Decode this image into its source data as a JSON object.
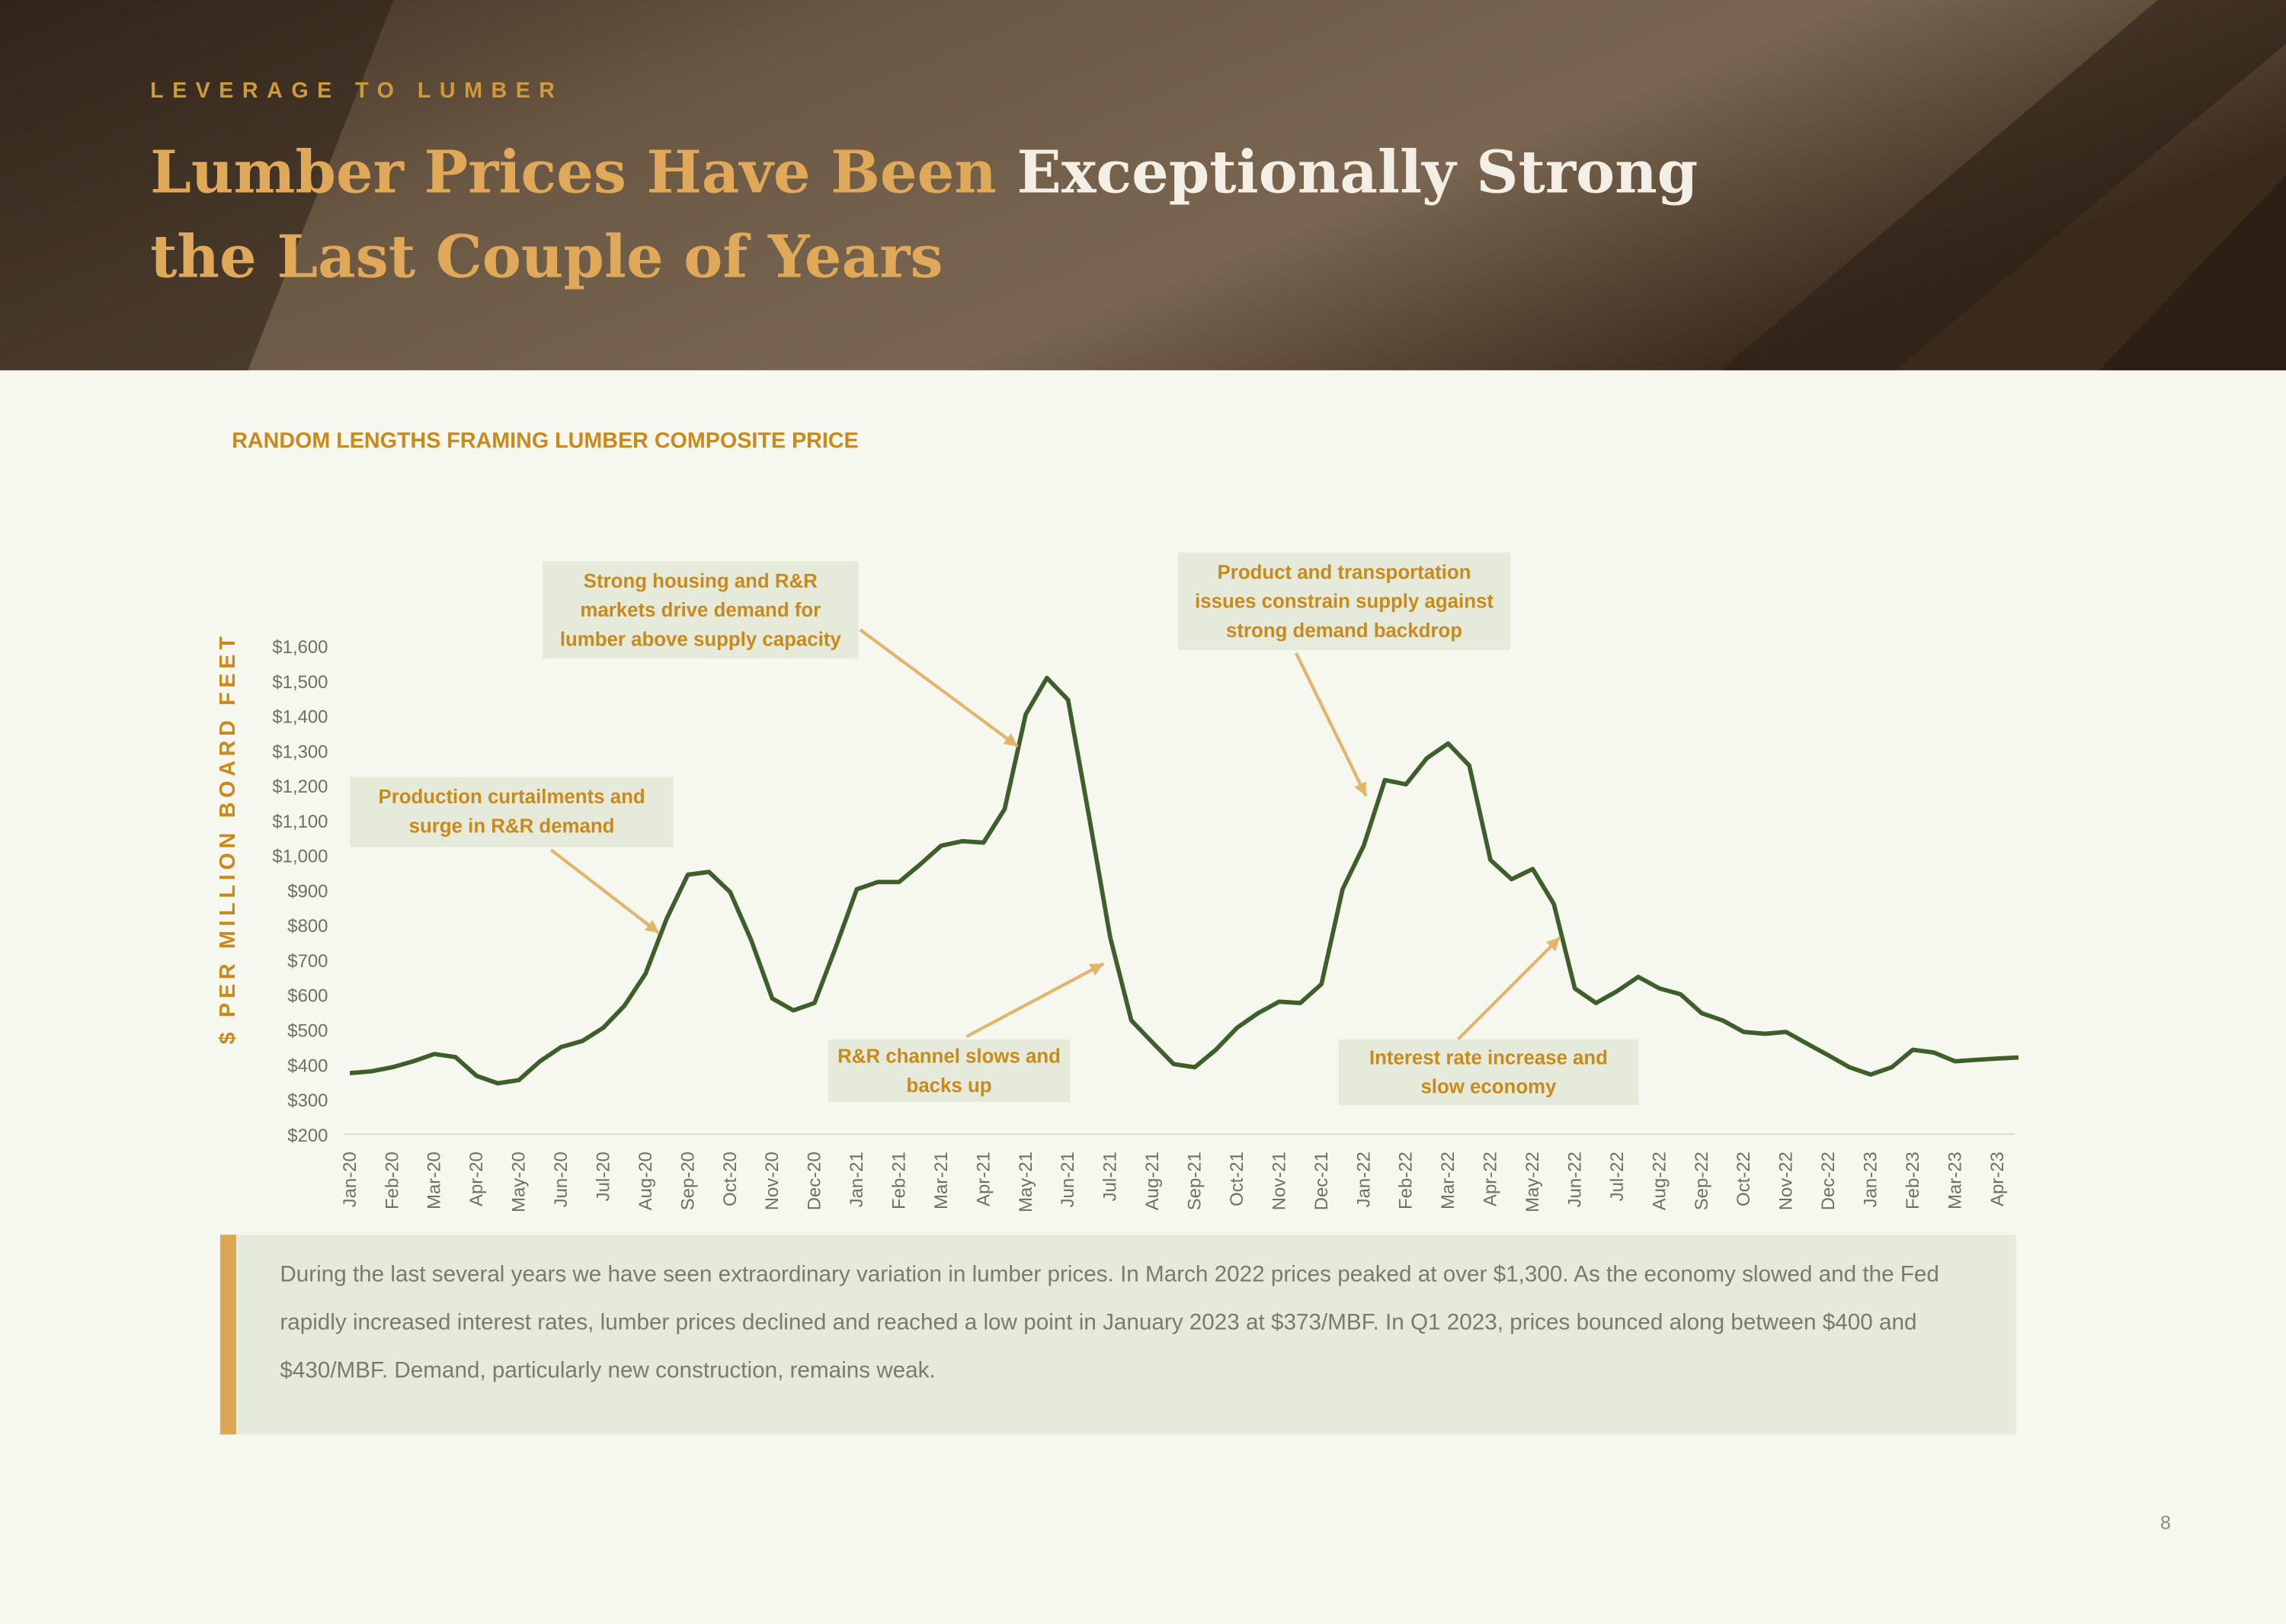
{
  "header": {
    "eyebrow": "LEVERAGE TO LUMBER",
    "title_part1": "Lumber Prices Have Been",
    "title_part2": "Exceptionally Strong",
    "title_part3": "the Last Couple of Years"
  },
  "chart_data": {
    "type": "line",
    "title": "RANDOM LENGTHS FRAMING LUMBER COMPOSITE PRICE",
    "y_label": "$ PER MILLION BOARD FEET",
    "categories": [
      "Jan-20",
      null,
      "Feb-20",
      null,
      "Mar-20",
      null,
      "Apr-20",
      null,
      "May-20",
      null,
      "Jun-20",
      null,
      "Jul-20",
      null,
      "Aug-20",
      null,
      "Sep-20",
      null,
      "Oct-20",
      null,
      "Nov-20",
      null,
      "Dec-20",
      null,
      "Jan-21",
      null,
      "Feb-21",
      null,
      "Mar-21",
      null,
      "Apr-21",
      null,
      "May-21",
      null,
      "Jun-21",
      null,
      "Jul-21",
      null,
      "Aug-21",
      null,
      "Sep-21",
      null,
      "Oct-21",
      null,
      "Nov-21",
      null,
      "Dec-21",
      null,
      "Jan-22",
      null,
      "Feb-22",
      null,
      "Mar-22",
      null,
      "Apr-22",
      null,
      "May-22",
      null,
      "Jun-22",
      null,
      "Jul-22",
      null,
      "Aug-22",
      null,
      "Sep-22",
      null,
      "Oct-22",
      null,
      "Nov-22",
      null,
      "Dec-22",
      null,
      "Jan-23",
      null,
      "Feb-23",
      null,
      "Mar-23",
      null,
      "Apr-23",
      null
    ],
    "series": [
      {
        "name": "Framing Lumber Composite Price",
        "color": "#3d5f2a",
        "values": [
          375,
          380,
          392,
          409,
          430,
          421,
          367,
          346,
          355,
          409,
          450,
          467,
          505,
          568,
          660,
          818,
          944,
          952,
          894,
          756,
          589,
          555,
          576,
          735,
          902,
          923,
          923,
          973,
          1027,
          1040,
          1036,
          1132,
          1404,
          1508,
          1445,
          1111,
          764,
          526,
          463,
          401,
          392,
          442,
          505,
          547,
          580,
          576,
          630,
          902,
          1027,
          1215,
          1203,
          1278,
          1320,
          1257,
          986,
          931,
          960,
          860,
          618,
          576,
          610,
          651,
          618,
          601,
          547,
          526,
          493,
          488,
          493,
          459,
          426,
          392,
          371,
          392,
          442,
          434,
          409,
          413,
          417,
          420
        ]
      }
    ],
    "ylim": [
      200,
      1600
    ],
    "yticks": [
      {
        "value": 200,
        "label": "$200"
      },
      {
        "value": 300,
        "label": "$300"
      },
      {
        "value": 400,
        "label": "$400"
      },
      {
        "value": 500,
        "label": "$500"
      },
      {
        "value": 600,
        "label": "$600"
      },
      {
        "value": 700,
        "label": "$700"
      },
      {
        "value": 800,
        "label": "$800"
      },
      {
        "value": 900,
        "label": "$900"
      },
      {
        "value": 1000,
        "label": "$1,000"
      },
      {
        "value": 1100,
        "label": "$1,100"
      },
      {
        "value": 1200,
        "label": "$1,200"
      },
      {
        "value": 1300,
        "label": "$1,300"
      },
      {
        "value": 1400,
        "label": "$1,400"
      },
      {
        "value": 1500,
        "label": "$1,500"
      },
      {
        "value": 1600,
        "label": "$1,600"
      }
    ],
    "grid": false,
    "annotations": [
      "Strong housing and R&R markets drive demand for lumber above supply capacity",
      "Product and transportation issues constrain supply against strong demand backdrop",
      "Production curtailments and surge in R&R demand",
      "R&R channel slows and backs up",
      "Interest rate increase and slow economy"
    ]
  },
  "body_text": "During the last several years we have seen extraordinary variation in lumber prices. In March 2022 prices peaked at over $1,300. As the economy slowed and the Fed rapidly increased interest rates, lumber prices declined and reached a low point in January 2023 at $373/MBF. In Q1 2023, prices bounced along between $400 and $430/MBF. Demand, particularly new construction, remains weak.",
  "page_number": "8"
}
